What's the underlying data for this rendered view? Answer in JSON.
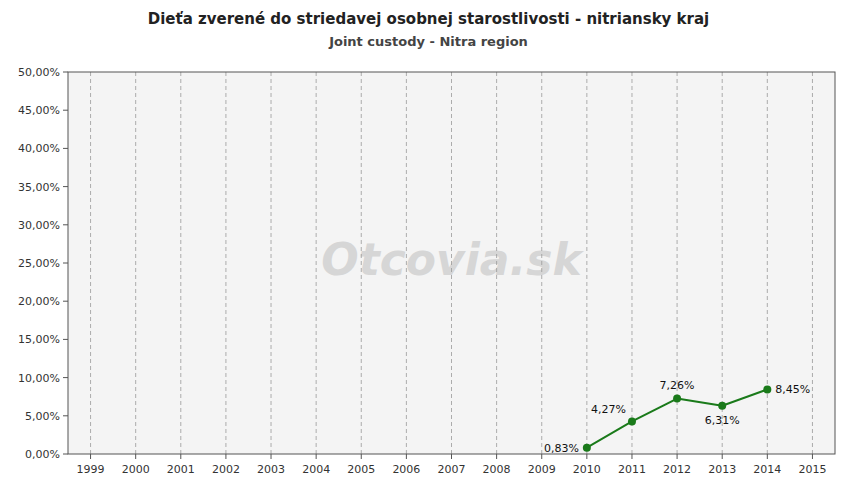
{
  "chart_data": {
    "type": "line",
    "title": "Dieťa zverené do striedavej osobnej starostlivosti - nitriansky kraj",
    "subtitle": "Joint custody - Nitra region",
    "annotation": "Otcovia.sk",
    "x": [
      2010,
      2011,
      2012,
      2013,
      2014
    ],
    "values": [
      0.0083,
      0.0427,
      0.0726,
      0.0631,
      0.0845
    ],
    "value_labels": [
      "0,83%",
      "4,27%",
      "7,26%",
      "6,31%",
      "8,45%"
    ],
    "data_labels": true,
    "color": "#1a7a1a",
    "marker": "circle",
    "xlim": [
      1998.5,
      2015.5
    ],
    "xticks": [
      1999,
      2000,
      2001,
      2002,
      2003,
      2004,
      2005,
      2006,
      2007,
      2008,
      2009,
      2010,
      2011,
      2012,
      2013,
      2014,
      2015
    ],
    "ylim": [
      0,
      0.5
    ],
    "yticks": [
      {
        "value": 0.0,
        "label": "0,00%"
      },
      {
        "value": 0.05,
        "label": "5,00%"
      },
      {
        "value": 0.1,
        "label": "10,00%"
      },
      {
        "value": 0.15,
        "label": "15,00%"
      },
      {
        "value": 0.2,
        "label": "20,00%"
      },
      {
        "value": 0.25,
        "label": "25,00%"
      },
      {
        "value": 0.3,
        "label": "30,00%"
      },
      {
        "value": 0.35,
        "label": "35,00%"
      },
      {
        "value": 0.4,
        "label": "40,00%"
      },
      {
        "value": 0.45,
        "label": "45,00%"
      },
      {
        "value": 0.5,
        "label": "50,00%"
      }
    ],
    "grid": "x"
  }
}
